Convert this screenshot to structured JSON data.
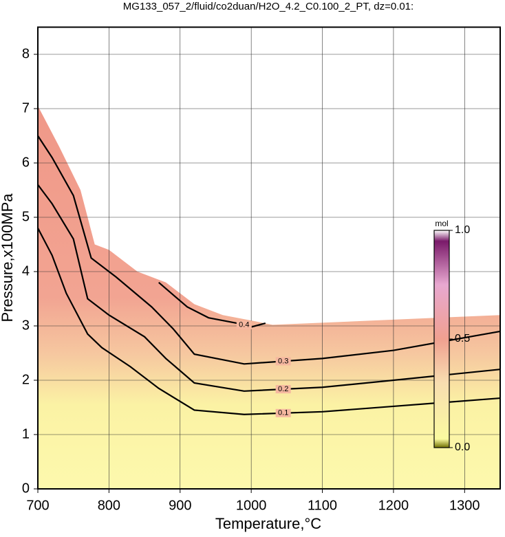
{
  "chart_data": {
    "type": "contour",
    "title": "MG133_057_2/fluid/co2duan/H2O_4.2_C0.100_2_PT, dz=0.01:",
    "x_label": "Temperature,°C",
    "y_label": "Pressure,x100MPa",
    "xlim": [
      700,
      1350
    ],
    "ylim": [
      0,
      8.5
    ],
    "xticks": [
      700,
      800,
      900,
      1000,
      1100,
      1200,
      1300
    ],
    "yticks": [
      0,
      1,
      2,
      3,
      4,
      5,
      6,
      7,
      8
    ],
    "grid": true,
    "boundary": {
      "x": [
        700,
        730,
        760,
        780,
        800,
        840,
        880,
        920,
        960,
        1000,
        1030,
        1350
      ],
      "y": [
        7.05,
        6.3,
        5.5,
        4.5,
        4.4,
        4.0,
        3.8,
        3.4,
        3.2,
        3.1,
        3.02,
        3.2
      ]
    },
    "series": [
      {
        "name": "0.1",
        "color": "#000000",
        "x": [
          700,
          720,
          740,
          770,
          790,
          830,
          870,
          920,
          990,
          1100,
          1200,
          1350
        ],
        "values": [
          4.8,
          4.3,
          3.6,
          2.85,
          2.6,
          2.25,
          1.85,
          1.45,
          1.37,
          1.42,
          1.52,
          1.67
        ]
      },
      {
        "name": "0.2",
        "color": "#000000",
        "x": [
          700,
          720,
          750,
          770,
          800,
          850,
          880,
          920,
          990,
          1100,
          1200,
          1350
        ],
        "values": [
          5.6,
          5.25,
          4.6,
          3.5,
          3.2,
          2.8,
          2.4,
          1.95,
          1.8,
          1.87,
          2.0,
          2.2
        ]
      },
      {
        "name": "0.3",
        "color": "#000000",
        "x": [
          700,
          720,
          750,
          775,
          810,
          860,
          890,
          920,
          990,
          1100,
          1200,
          1350
        ],
        "values": [
          6.5,
          6.1,
          5.4,
          4.25,
          3.9,
          3.35,
          2.95,
          2.48,
          2.3,
          2.4,
          2.55,
          2.9
        ]
      },
      {
        "name": "0.4",
        "color": "#000000",
        "x": [
          870,
          910,
          940,
          980,
          1000,
          1020
        ],
        "values": [
          3.8,
          3.35,
          3.15,
          3.05,
          2.98,
          3.05
        ]
      }
    ],
    "colorbar": {
      "label": "mol",
      "lim": [
        0,
        1
      ],
      "ticks": [
        {
          "value": 0,
          "label": "0.0"
        },
        {
          "value": 0.5,
          "label": "0.5"
        },
        {
          "value": 1,
          "label": "1.0"
        }
      ]
    }
  }
}
